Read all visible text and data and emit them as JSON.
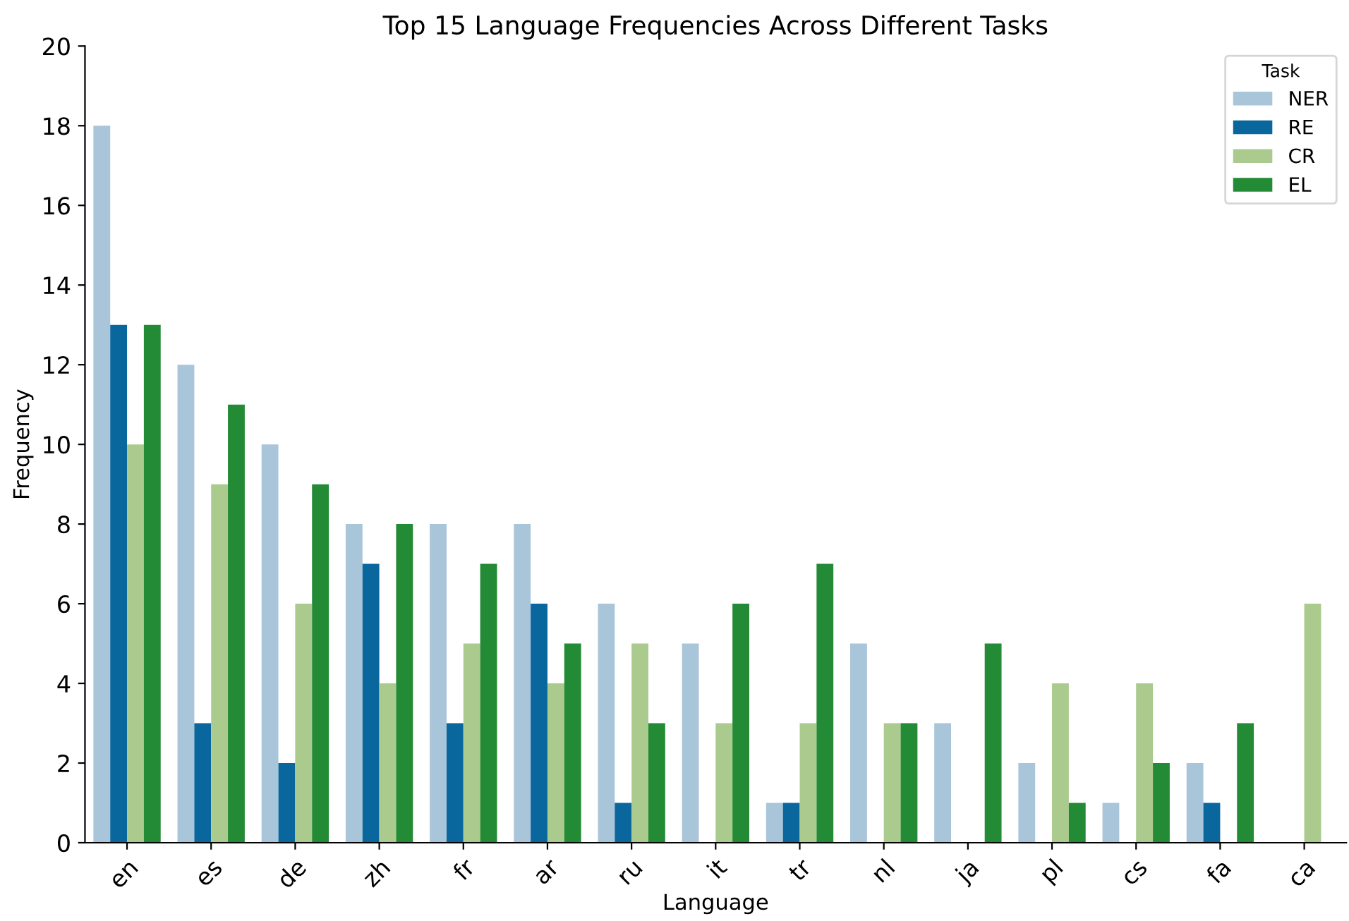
{
  "chart_data": {
    "type": "bar",
    "title": "Top 15 Language Frequencies Across Different Tasks",
    "xlabel": "Language",
    "ylabel": "Frequency",
    "legend_title": "Task",
    "categories": [
      "en",
      "es",
      "de",
      "zh",
      "fr",
      "ar",
      "ru",
      "it",
      "tr",
      "nl",
      "ja",
      "pl",
      "cs",
      "fa",
      "ca"
    ],
    "series": [
      {
        "name": "NER",
        "color": "#a9c5d9",
        "values": [
          18,
          12,
          10,
          8,
          8,
          8,
          6,
          5,
          1,
          5,
          3,
          2,
          1,
          2,
          0
        ]
      },
      {
        "name": "RE",
        "color": "#0a679e",
        "values": [
          13,
          3,
          2,
          7,
          3,
          6,
          1,
          0,
          1,
          0,
          0,
          0,
          0,
          1,
          0
        ]
      },
      {
        "name": "CR",
        "color": "#abca8d",
        "values": [
          10,
          9,
          6,
          4,
          5,
          4,
          5,
          3,
          3,
          3,
          0,
          4,
          4,
          0,
          6
        ]
      },
      {
        "name": "EL",
        "color": "#238a35",
        "values": [
          13,
          11,
          9,
          8,
          7,
          5,
          3,
          6,
          7,
          3,
          5,
          1,
          2,
          3,
          0
        ]
      }
    ],
    "ylim": [
      0,
      20
    ],
    "yticks": [
      0,
      2,
      4,
      6,
      8,
      10,
      12,
      14,
      16,
      18,
      20
    ],
    "legend": "top right",
    "grid": false
  }
}
